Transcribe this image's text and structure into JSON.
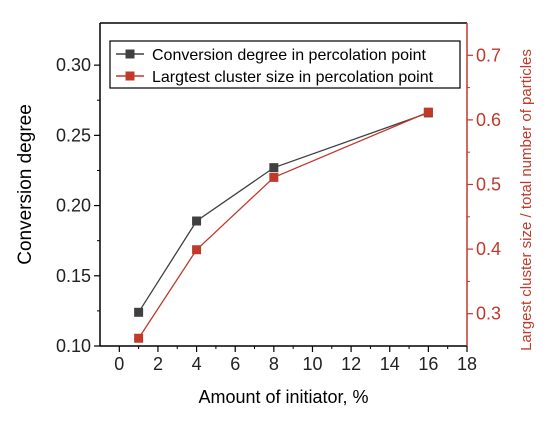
{
  "chart_data": {
    "type": "line",
    "xlabel": "Amount of initiator, %",
    "ylabel": "Conversion degree",
    "y2label": "Largest cluster size / total number of particles",
    "x": [
      1,
      4,
      8,
      16
    ],
    "xlim": [
      -1,
      18
    ],
    "x_ticks": [
      0,
      2,
      4,
      6,
      8,
      10,
      12,
      14,
      16,
      18
    ],
    "ylim": [
      0.1,
      0.33
    ],
    "y_ticks": [
      0.1,
      0.15,
      0.2,
      0.25,
      0.3
    ],
    "y2lim": [
      0.25,
      0.75
    ],
    "y2_ticks": [
      0.3,
      0.4,
      0.5,
      0.6,
      0.7
    ],
    "grid": false,
    "legend_position": "top-left",
    "series": [
      {
        "name": "Conversion degree in percolation point",
        "axis": "left",
        "values": [
          0.124,
          0.189,
          0.227,
          0.266
        ],
        "color": "#404040"
      },
      {
        "name": "Largtest cluster size in percolation point",
        "axis": "right",
        "values": [
          0.262,
          0.399,
          0.511,
          0.612
        ],
        "color": "#c0392b"
      }
    ],
    "colors": {
      "axis": "#000000",
      "secondary_axis": "#c0392b"
    }
  }
}
